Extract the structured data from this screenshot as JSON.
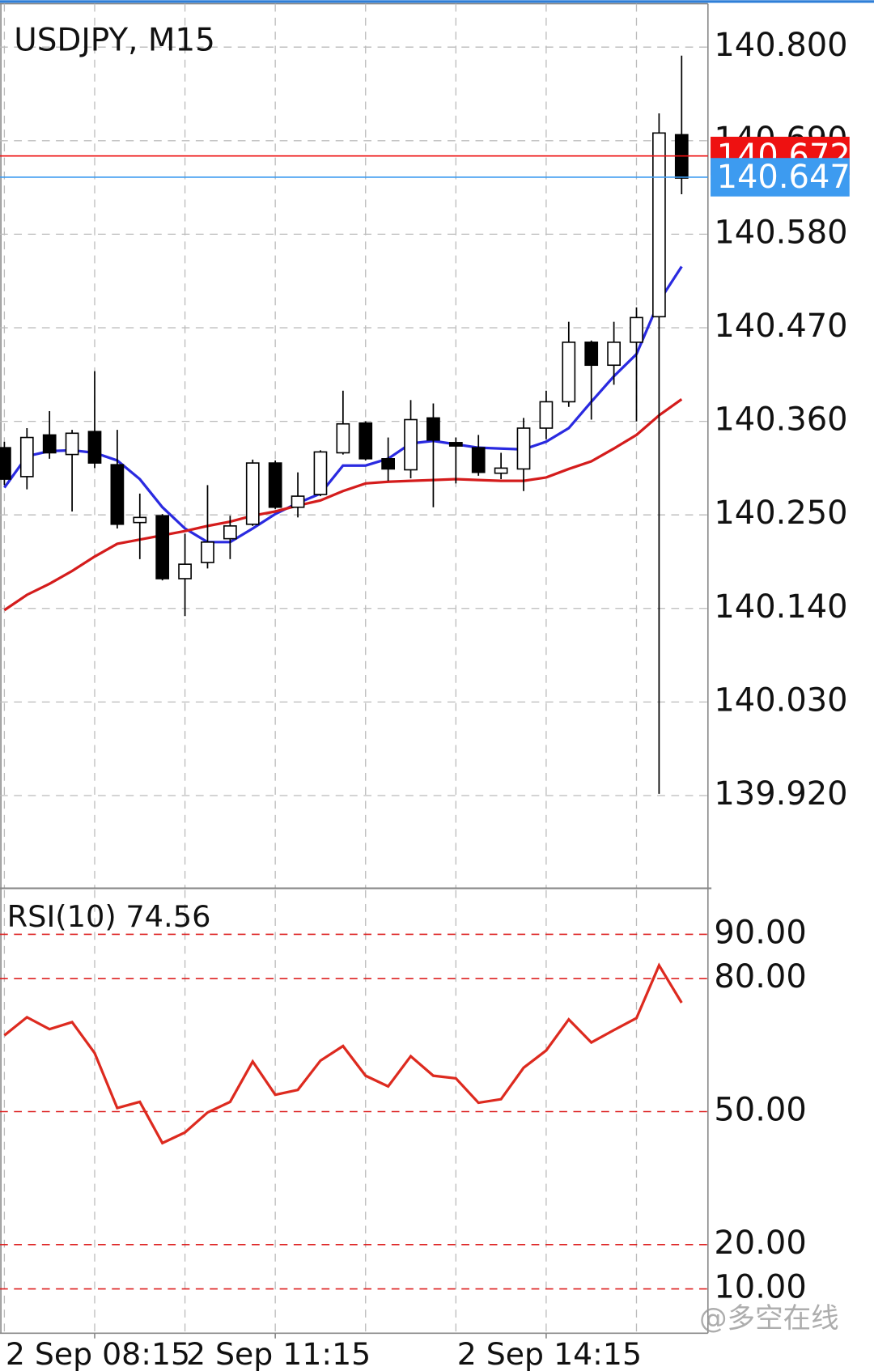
{
  "watermark": "@多空在线",
  "chart_data": [
    {
      "type": "candlestick",
      "title": "USDJPY, M15",
      "open": [
        140.329,
        140.295,
        140.344,
        140.321,
        140.348,
        140.309,
        140.241,
        140.249,
        140.175,
        140.194,
        140.222,
        140.239,
        140.311,
        140.259,
        140.274,
        140.323,
        140.358,
        140.316,
        140.303,
        140.364,
        140.335,
        140.329,
        140.299,
        140.304,
        140.352,
        140.383,
        140.453,
        140.426,
        140.453,
        140.483,
        140.697
      ],
      "high": [
        140.336,
        140.352,
        140.372,
        140.35,
        140.419,
        140.35,
        140.275,
        140.251,
        140.228,
        140.285,
        140.249,
        140.315,
        140.314,
        140.3,
        140.326,
        140.396,
        140.36,
        140.341,
        140.385,
        140.381,
        140.341,
        140.344,
        140.323,
        140.364,
        140.396,
        140.477,
        140.455,
        140.477,
        140.494,
        140.722,
        140.79
      ],
      "low": [
        140.285,
        140.28,
        140.316,
        140.254,
        140.305,
        140.234,
        140.198,
        140.173,
        140.131,
        140.187,
        140.198,
        140.237,
        140.257,
        140.247,
        140.272,
        140.321,
        140.314,
        140.29,
        140.293,
        140.259,
        140.287,
        140.296,
        140.292,
        140.278,
        140.339,
        140.377,
        140.362,
        140.403,
        140.36,
        139.922,
        140.627
      ],
      "close": [
        140.292,
        140.341,
        140.323,
        140.346,
        140.311,
        140.239,
        140.247,
        140.175,
        140.192,
        140.218,
        140.237,
        140.311,
        140.259,
        140.272,
        140.324,
        140.357,
        140.316,
        140.304,
        140.362,
        140.338,
        140.331,
        140.3,
        140.305,
        140.352,
        140.383,
        140.453,
        140.426,
        140.453,
        140.482,
        140.699,
        140.646
      ],
      "series": [
        {
          "color": "#2a2ae0",
          "values": [
            140.282,
            140.319,
            140.325,
            140.326,
            140.323,
            140.314,
            140.292,
            140.259,
            140.234,
            140.218,
            140.218,
            140.234,
            140.251,
            140.264,
            140.275,
            140.308,
            140.308,
            140.316,
            140.334,
            140.337,
            140.333,
            140.329,
            140.328,
            140.327,
            140.336,
            140.352,
            140.383,
            140.413,
            140.439,
            140.501,
            140.542
          ]
        },
        {
          "color": "#d41c1c",
          "values": [
            140.138,
            140.156,
            140.169,
            140.184,
            140.201,
            140.216,
            140.221,
            140.226,
            140.231,
            140.237,
            140.242,
            140.249,
            140.254,
            140.261,
            140.267,
            140.278,
            140.287,
            140.289,
            140.29,
            140.291,
            140.292,
            140.291,
            140.29,
            140.29,
            140.294,
            140.304,
            140.313,
            140.328,
            140.344,
            140.367,
            140.386
          ]
        }
      ],
      "price_lines": [
        {
          "value": 140.672,
          "color": "#ee1111"
        },
        {
          "value": 140.647,
          "color": "#3d9bf0"
        }
      ],
      "ylim": [
        139.812,
        140.851
      ],
      "yticks": [
        {
          "value": 139.92,
          "label": "139.920"
        },
        {
          "value": 140.03,
          "label": "140.030"
        },
        {
          "value": 140.14,
          "label": "140.140"
        },
        {
          "value": 140.25,
          "label": "140.250"
        },
        {
          "value": 140.36,
          "label": "140.360"
        },
        {
          "value": 140.47,
          "label": "140.470"
        },
        {
          "value": 140.58,
          "label": "140.580"
        },
        {
          "value": 140.69,
          "label": "140.690"
        },
        {
          "value": 140.8,
          "label": "140.800"
        }
      ],
      "grid": true
    },
    {
      "type": "line",
      "title": "RSI(10) 74.56",
      "categories": [
        null,
        null,
        null,
        null,
        "2 Sep 08:15",
        null,
        null,
        null,
        null,
        null,
        null,
        null,
        "2 Sep 11:15",
        null,
        null,
        null,
        null,
        null,
        null,
        null,
        null,
        null,
        null,
        null,
        "2 Sep 14:15",
        null,
        null,
        null,
        null,
        null,
        null
      ],
      "series": [
        {
          "color": "#dd2a1f",
          "values": [
            67.2,
            71.3,
            68.6,
            70.2,
            63.2,
            50.8,
            52.2,
            42.9,
            45.3,
            49.8,
            52.2,
            61.3,
            53.8,
            54.9,
            61.5,
            64.8,
            58.1,
            55.7,
            62.5,
            58.1,
            57.5,
            52.0,
            52.8,
            59.9,
            63.8,
            70.8,
            65.6,
            68.4,
            71.1,
            83.0,
            74.56
          ]
        }
      ],
      "ylim": [
        0,
        100
      ],
      "yticks": [
        {
          "value": 10,
          "label": "10.00"
        },
        {
          "value": 20,
          "label": "20.00"
        },
        {
          "value": 50,
          "label": "50.00"
        },
        {
          "value": 80,
          "label": "80.00"
        },
        {
          "value": 90,
          "label": "90.00"
        }
      ],
      "level_color": "#dd2020"
    }
  ]
}
